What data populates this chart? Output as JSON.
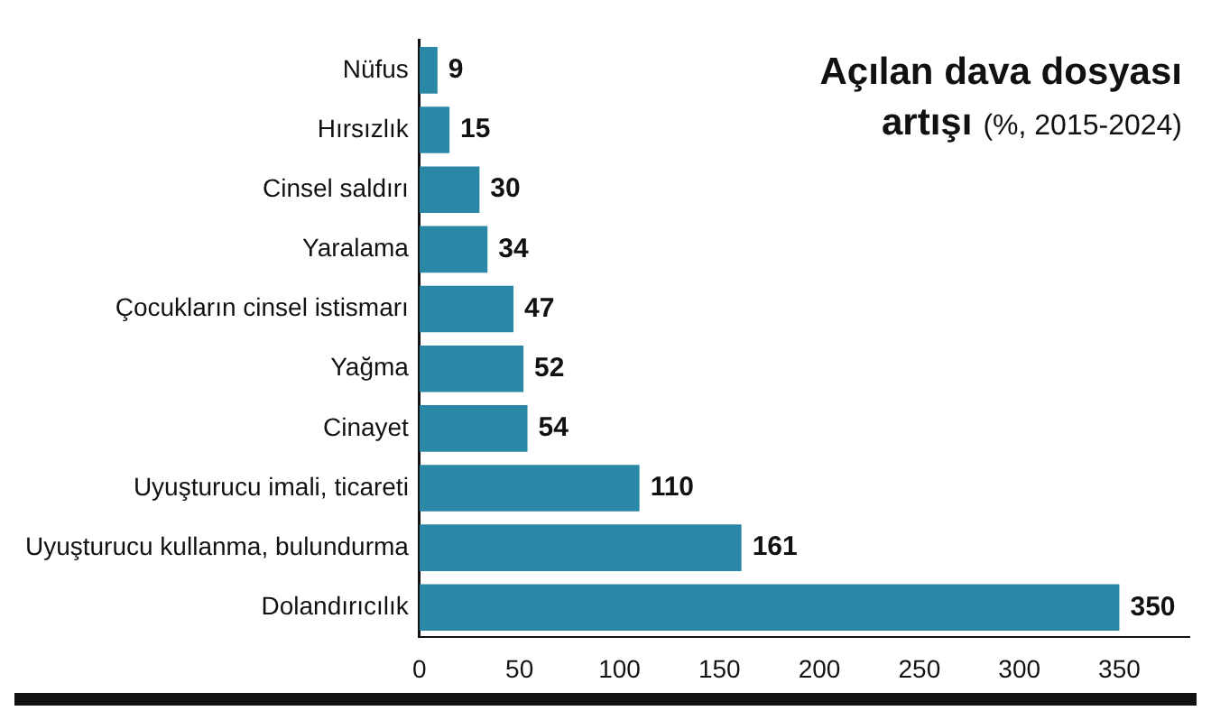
{
  "chart_data": {
    "type": "bar",
    "orientation": "horizontal",
    "title": "Açılan dava dosyası artışı",
    "subtitle": "(%, 2015-2024)",
    "categories": [
      "Nüfus",
      "Hırsızlık",
      "Cinsel saldırı",
      "Yaralama",
      "Çocukların cinsel istismarı",
      "Yağma",
      "Cinayet",
      "Uyuşturucu imali, ticareti",
      "Uyuşturucu kullanma, bulundurma",
      "Dolandırıcılık"
    ],
    "values": [
      9,
      15,
      30,
      34,
      47,
      52,
      54,
      110,
      161,
      350
    ],
    "color": "#2a88a6",
    "xlim": [
      0,
      385
    ],
    "xticks": [
      0,
      50,
      100,
      150,
      200,
      250,
      300,
      350
    ],
    "grid": false,
    "data_labels": true,
    "legend": false
  }
}
